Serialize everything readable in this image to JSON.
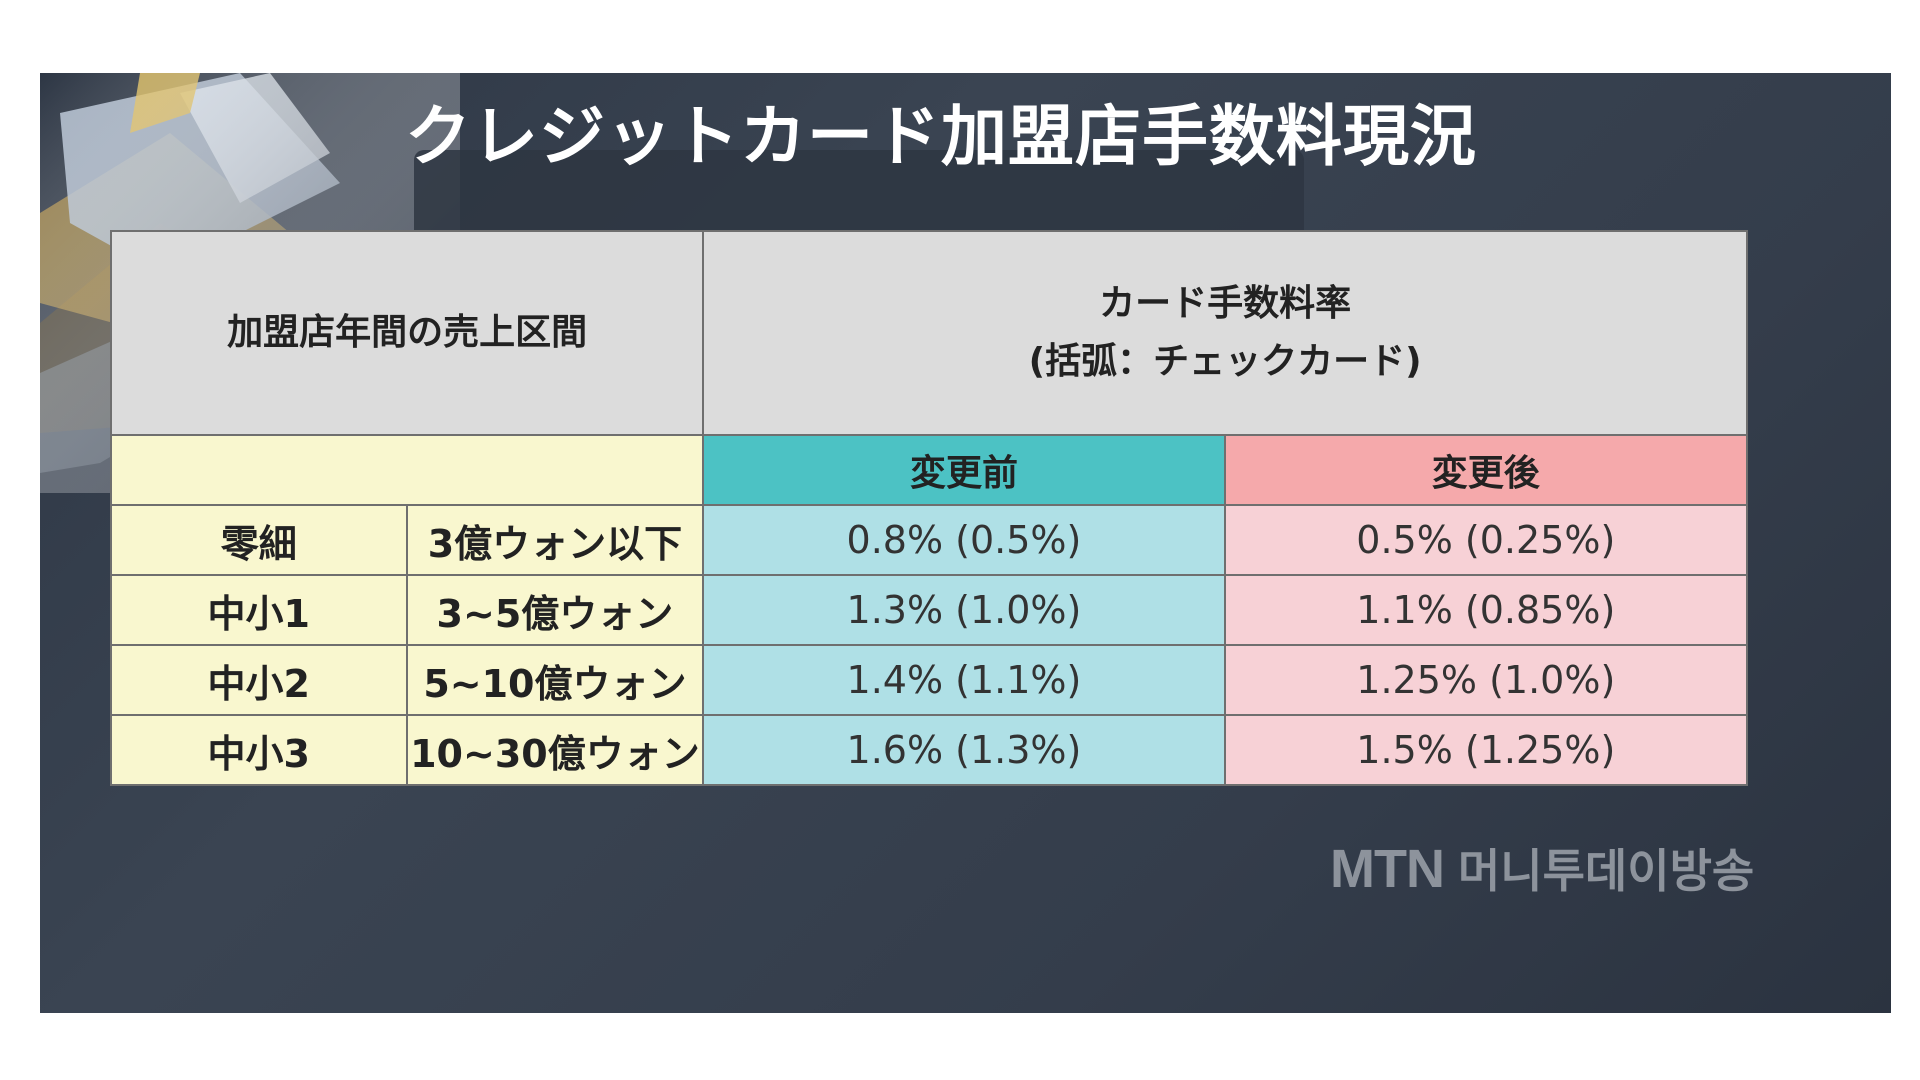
{
  "title": "クレジットカード加盟店手数料現況",
  "table": {
    "header_left": "加盟店年間の売上区間",
    "header_right_line1": "カード手数料率",
    "header_right_line2": "(括弧：チェックカード)",
    "sub_before": "変更前",
    "sub_after": "変更後",
    "rows": [
      {
        "category": "零細",
        "range": "3億ウォン以下",
        "before": "0.8% (0.5%)",
        "after": "0.5% (0.25%)"
      },
      {
        "category": "中小1",
        "range": "3~5億ウォン",
        "before": "1.3% (1.0%)",
        "after": "1.1% (0.85%)"
      },
      {
        "category": "中小2",
        "range": "5~10億ウォン",
        "before": "1.4% (1.1%)",
        "after": "1.25% (1.0%)"
      },
      {
        "category": "中小3",
        "range": "10~30億ウォン",
        "before": "1.6% (1.3%)",
        "after": "1.5% (1.25%)"
      }
    ]
  },
  "logo": {
    "mtn": "MTN",
    "korean": "머니투데이방송"
  },
  "colors": {
    "header_bg": "#dcdcdc",
    "label_bg": "#f9f7cf",
    "before_header": "#4cc2c4",
    "before_cell": "#afe0e6",
    "after_header": "#f5a9ab",
    "after_cell": "#f7d1d6"
  }
}
